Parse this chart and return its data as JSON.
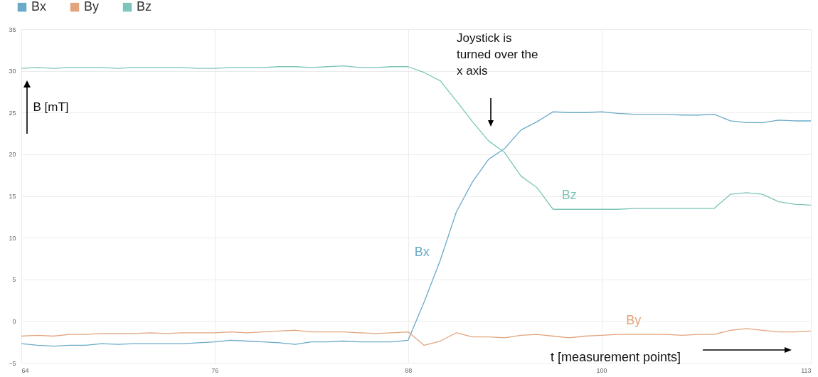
{
  "chart_data": {
    "type": "line",
    "xlabel": "t  [measurement points]",
    "ylabel": "B [mT]",
    "x": [
      64,
      65,
      66,
      67,
      68,
      69,
      70,
      71,
      72,
      73,
      74,
      75,
      76,
      77,
      78,
      79,
      80,
      81,
      82,
      83,
      84,
      85,
      86,
      87,
      88,
      89,
      90,
      91,
      92,
      93,
      94,
      95,
      96,
      97,
      98,
      99,
      100,
      101,
      102,
      103,
      104,
      105,
      106,
      107,
      108,
      109,
      110,
      111,
      112,
      113
    ],
    "xlim": [
      64,
      113
    ],
    "xticks": [
      64,
      76,
      88,
      100,
      113
    ],
    "ylim": [
      -5,
      35
    ],
    "yticks": [
      -5,
      0,
      5,
      10,
      15,
      20,
      25,
      30,
      35
    ],
    "grid": true,
    "legend": "top left",
    "marker": "none",
    "line_style": "solid",
    "series": [
      {
        "name": "Bx",
        "color": "#6aaac8",
        "values": [
          -2.7,
          -2.9,
          -3.0,
          -2.9,
          -2.9,
          -2.7,
          -2.8,
          -2.7,
          -2.7,
          -2.7,
          -2.7,
          -2.6,
          -2.5,
          -2.3,
          -2.4,
          -2.5,
          -2.6,
          -2.8,
          -2.5,
          -2.5,
          -2.4,
          -2.5,
          -2.5,
          -2.5,
          -2.3,
          2.3,
          7.3,
          13.1,
          16.7,
          19.4,
          20.7,
          22.9,
          23.9,
          25.1,
          25.0,
          25.0,
          25.1,
          24.9,
          24.8,
          24.8,
          24.8,
          24.7,
          24.7,
          24.8,
          24.0,
          23.8,
          23.8,
          24.1,
          24.0,
          24.0
        ]
      },
      {
        "name": "By",
        "color": "#e2a47c",
        "values": [
          -1.8,
          -1.7,
          -1.8,
          -1.6,
          -1.6,
          -1.5,
          -1.5,
          -1.5,
          -1.4,
          -1.5,
          -1.4,
          -1.4,
          -1.4,
          -1.3,
          -1.4,
          -1.3,
          -1.2,
          -1.1,
          -1.3,
          -1.3,
          -1.3,
          -1.4,
          -1.5,
          -1.4,
          -1.3,
          -2.9,
          -2.4,
          -1.4,
          -1.9,
          -1.9,
          -2.0,
          -1.7,
          -1.6,
          -1.8,
          -2.0,
          -1.8,
          -1.7,
          -1.6,
          -1.6,
          -1.6,
          -1.6,
          -1.7,
          -1.6,
          -1.6,
          -1.1,
          -0.9,
          -1.1,
          -1.3,
          -1.3,
          -1.2
        ]
      },
      {
        "name": "Bz",
        "color": "#7cc5b8",
        "values": [
          30.3,
          30.4,
          30.3,
          30.4,
          30.4,
          30.4,
          30.3,
          30.4,
          30.4,
          30.4,
          30.4,
          30.3,
          30.3,
          30.4,
          30.4,
          30.4,
          30.5,
          30.5,
          30.4,
          30.5,
          30.6,
          30.4,
          30.4,
          30.5,
          30.5,
          29.8,
          28.8,
          26.4,
          23.9,
          21.6,
          20.2,
          17.4,
          16.0,
          13.4,
          13.4,
          13.4,
          13.4,
          13.4,
          13.5,
          13.5,
          13.5,
          13.5,
          13.5,
          13.5,
          15.2,
          15.4,
          15.2,
          14.3,
          14.0,
          13.9
        ]
      }
    ],
    "annotations": [
      "Joystick is turned over the x axis"
    ]
  }
}
